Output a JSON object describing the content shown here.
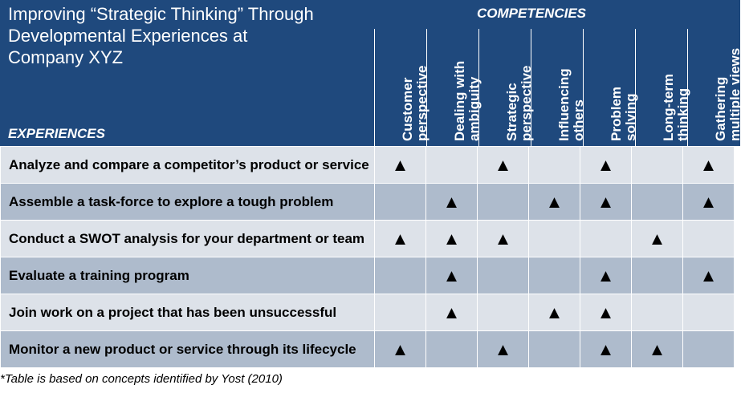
{
  "header": {
    "title": "Improving “Strategic Thinking” Through\nDevelopmental Experiences at\nCompany XYZ",
    "competencies_label": "COMPETENCIES",
    "experiences_label": "EXPERIENCES"
  },
  "competencies": [
    "Customer\nperspective",
    "Dealing with\nambiguity",
    "Strategic\nperspective",
    "Influencing\nothers",
    "Problem\nsolving",
    "Long-term\nthinking",
    "Gathering\nmultiple views"
  ],
  "marker": "▲",
  "rows": [
    {
      "experience": "Analyze and compare a competitor’s product or service",
      "marks": [
        true,
        false,
        true,
        false,
        true,
        false,
        true
      ]
    },
    {
      "experience": "Assemble a task-force to explore a tough problem",
      "marks": [
        false,
        true,
        false,
        true,
        true,
        false,
        true
      ]
    },
    {
      "experience": "Conduct a SWOT analysis for your department or team",
      "marks": [
        true,
        true,
        true,
        false,
        false,
        true,
        false
      ]
    },
    {
      "experience": "Evaluate a training program",
      "marks": [
        false,
        true,
        false,
        false,
        true,
        false,
        true
      ]
    },
    {
      "experience": "Join work on a project that has been unsuccessful",
      "marks": [
        false,
        true,
        false,
        true,
        true,
        false,
        false
      ]
    },
    {
      "experience": "Monitor a new product or service through its lifecycle",
      "marks": [
        true,
        false,
        true,
        false,
        true,
        true,
        false
      ]
    }
  ],
  "footnote": "*Table is based on concepts identified by Yost (2010)",
  "colors": {
    "header": "#1f497d",
    "row_light": "#dde2e9",
    "row_dark": "#aebbcc"
  }
}
